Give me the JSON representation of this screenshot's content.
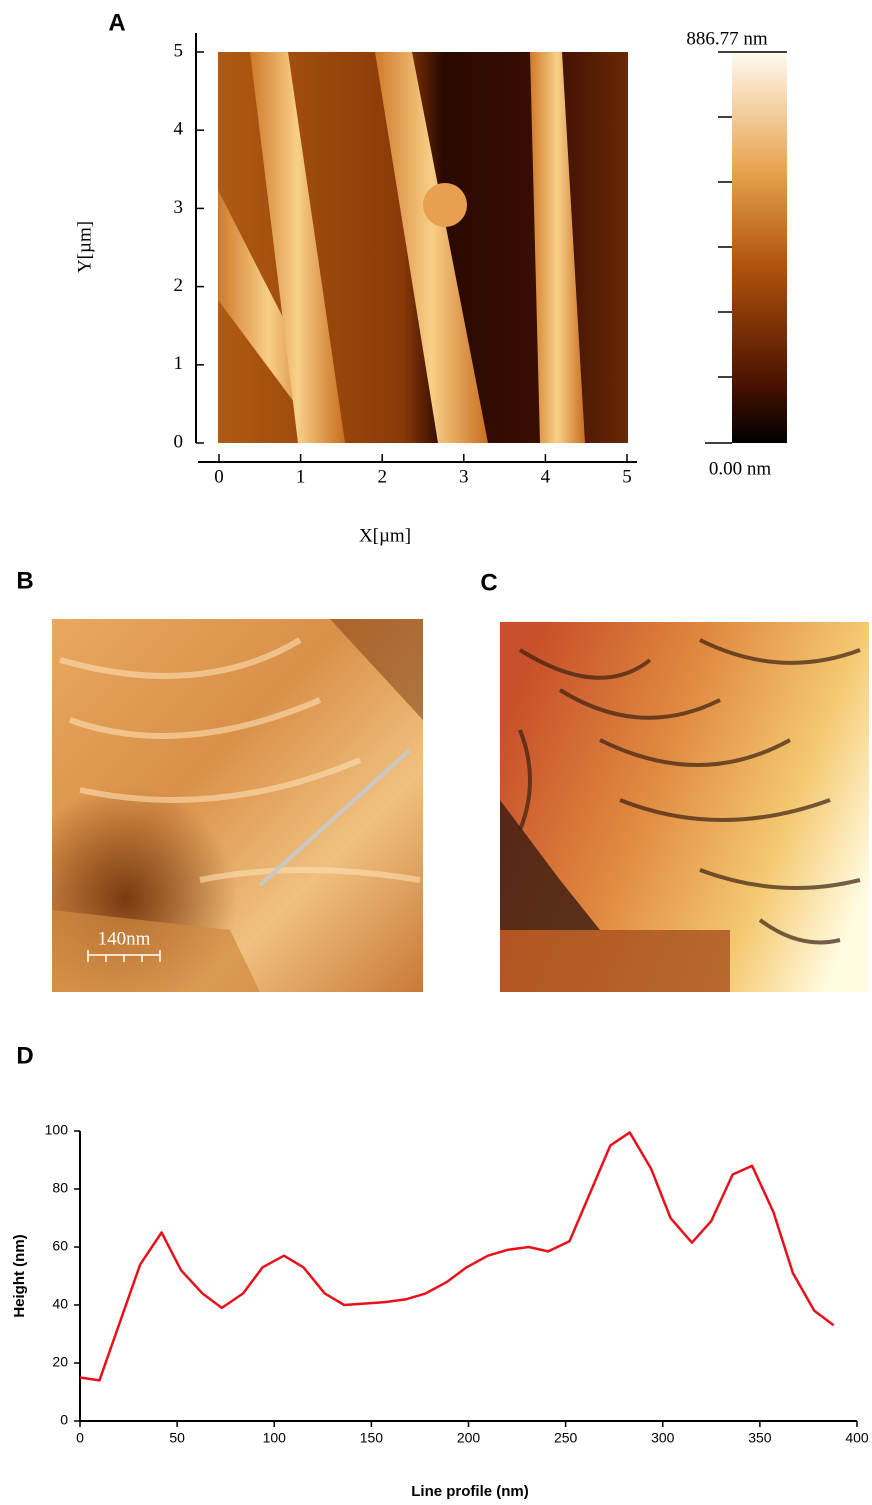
{
  "panel_labels": [
    "A",
    "B",
    "C",
    "D"
  ],
  "scale_bar": "140nm",
  "chart_data": [
    {
      "type": "image",
      "xlabel": "X[µm]",
      "ylabel": "Y[µm]",
      "xlim": [
        0,
        5
      ],
      "ylim": [
        0,
        5
      ],
      "xticks": [
        0,
        1,
        2,
        3,
        4,
        5
      ],
      "yticks": [
        0,
        1,
        2,
        3,
        4,
        5
      ],
      "colorbar_labels": [
        "886.77 nm",
        "0.00 nm"
      ]
    },
    {
      "type": "line",
      "xlabel": "Line profile (nm)",
      "ylabel": "Height  (nm)",
      "color": "#e8111a",
      "x": [
        0,
        10,
        31,
        42,
        52,
        63,
        73,
        84,
        94,
        105,
        115,
        126,
        136,
        147,
        157,
        168,
        178,
        189,
        199,
        210,
        220,
        231,
        241,
        252,
        273,
        283,
        294,
        304,
        315,
        325,
        336,
        346,
        357,
        367,
        378,
        388
      ],
      "values": [
        15,
        14,
        54,
        65,
        52,
        44,
        39,
        44,
        53,
        57,
        53,
        44,
        40,
        40.5,
        41,
        42,
        44,
        48,
        53,
        57,
        59,
        60,
        58.5,
        62,
        95,
        99.5,
        87,
        70,
        61.5,
        69,
        85,
        88,
        72,
        51,
        38,
        33
      ],
      "xlim": [
        0,
        400
      ],
      "ylim": [
        0,
        100
      ],
      "xticks": [
        0,
        50,
        100,
        150,
        200,
        250,
        300,
        350,
        400
      ],
      "yticks": [
        0,
        20,
        40,
        60,
        80,
        100
      ]
    }
  ]
}
